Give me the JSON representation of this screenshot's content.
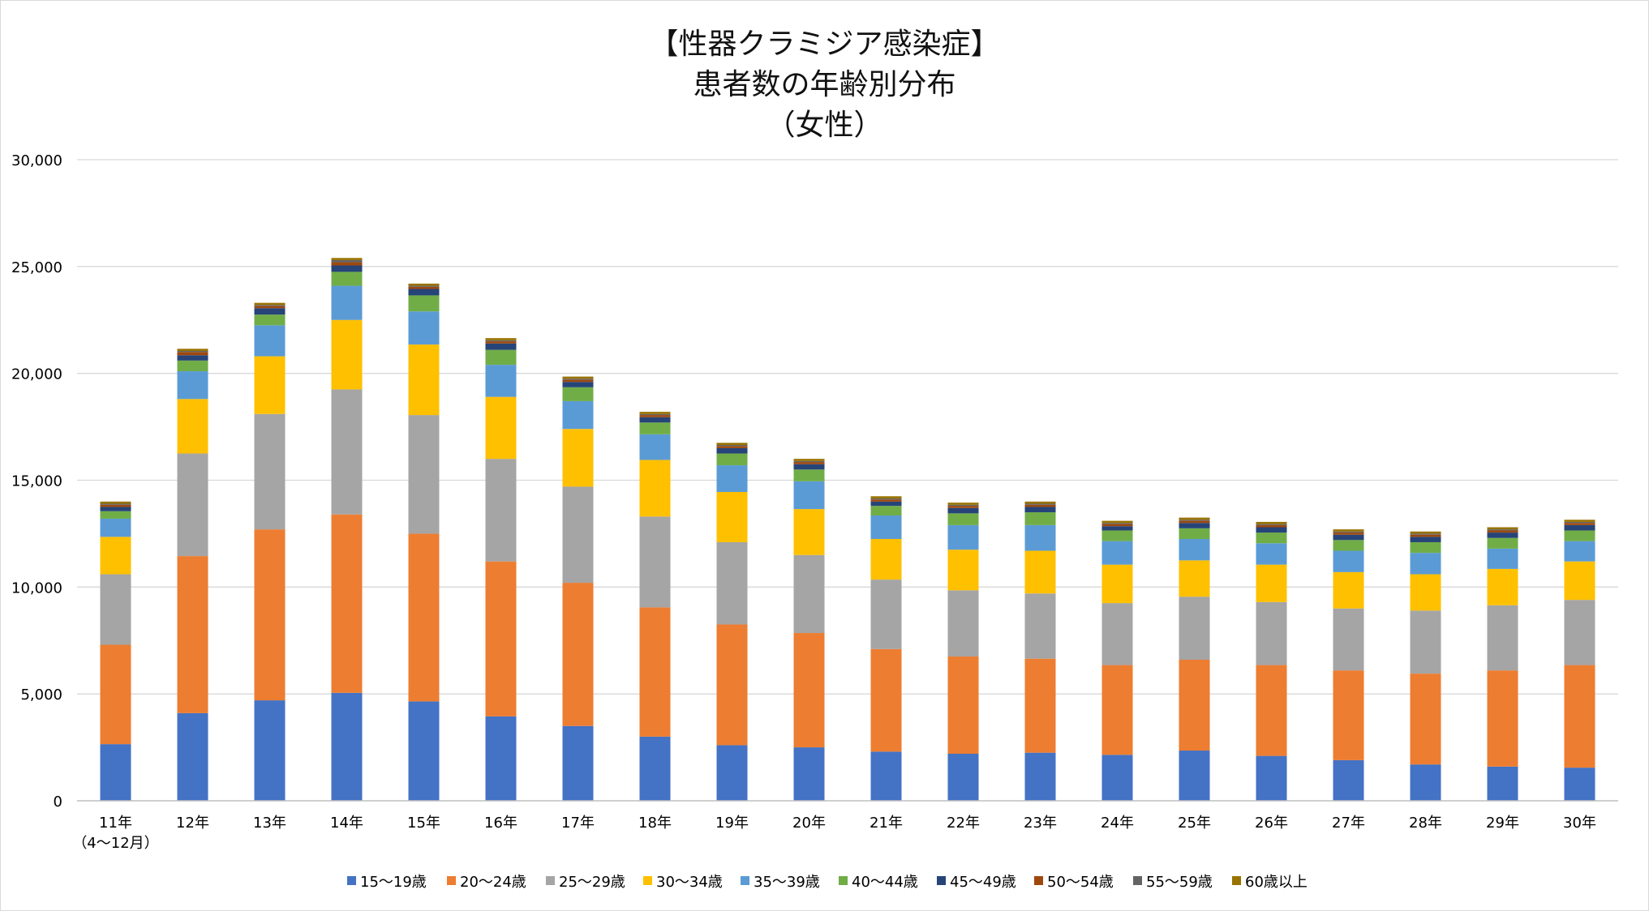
{
  "chart_data": {
    "type": "bar",
    "stacked": true,
    "title_lines": [
      "【性器クラミジア感染症】",
      "患者数の年齢別分布",
      "（女性）"
    ],
    "categories": [
      "11年",
      "12年",
      "13年",
      "14年",
      "15年",
      "16年",
      "17年",
      "18年",
      "19年",
      "20年",
      "21年",
      "22年",
      "23年",
      "24年",
      "25年",
      "26年",
      "27年",
      "28年",
      "29年",
      "30年"
    ],
    "category_sublabels": [
      "（4～12月）",
      "",
      "",
      "",
      "",
      "",
      "",
      "",
      "",
      "",
      "",
      "",
      "",
      "",
      "",
      "",
      "",
      "",
      "",
      ""
    ],
    "ylim": [
      0,
      30000
    ],
    "yticks": [
      "0",
      "5,000",
      "10,000",
      "15,000",
      "20,000",
      "25,000",
      "30,000"
    ],
    "ytick_values": [
      0,
      5000,
      10000,
      15000,
      20000,
      25000,
      30000
    ],
    "grid": true,
    "legend_position": "bottom",
    "series": [
      {
        "name": "15～19歳",
        "color": "#4472c4",
        "values": [
          2650,
          4100,
          4700,
          5050,
          4650,
          3950,
          3500,
          3000,
          2600,
          2500,
          2300,
          2200,
          2250,
          2150,
          2350,
          2100,
          1900,
          1700,
          1600,
          1550
        ]
      },
      {
        "name": "20～24歳",
        "color": "#ed7d31",
        "values": [
          4650,
          7350,
          8000,
          8350,
          7850,
          7250,
          6700,
          6050,
          5650,
          5350,
          4800,
          4550,
          4400,
          4200,
          4250,
          4250,
          4200,
          4250,
          4500,
          4800
        ]
      },
      {
        "name": "25～29歳",
        "color": "#a5a5a5",
        "values": [
          3300,
          4800,
          5400,
          5850,
          5550,
          4800,
          4500,
          4250,
          3850,
          3650,
          3250,
          3100,
          3050,
          2900,
          2950,
          2950,
          2900,
          2950,
          3050,
          3050
        ]
      },
      {
        "name": "30～34歳",
        "color": "#ffc000",
        "values": [
          1750,
          2550,
          2700,
          3250,
          3300,
          2900,
          2700,
          2650,
          2350,
          2150,
          1900,
          1900,
          2000,
          1800,
          1700,
          1750,
          1700,
          1700,
          1700,
          1800
        ]
      },
      {
        "name": "35～39歳",
        "color": "#5b9bd5",
        "values": [
          850,
          1300,
          1450,
          1600,
          1550,
          1500,
          1300,
          1200,
          1250,
          1300,
          1100,
          1150,
          1200,
          1100,
          1000,
          1000,
          1000,
          1000,
          950,
          950
        ]
      },
      {
        "name": "40～44歳",
        "color": "#70ad47",
        "values": [
          350,
          500,
          500,
          650,
          750,
          700,
          650,
          550,
          550,
          550,
          450,
          550,
          600,
          500,
          500,
          500,
          500,
          500,
          500,
          500
        ]
      },
      {
        "name": "45～49歳",
        "color": "#264478",
        "values": [
          200,
          250,
          300,
          300,
          300,
          300,
          250,
          250,
          250,
          250,
          200,
          250,
          250,
          200,
          250,
          250,
          250,
          250,
          250,
          250
        ]
      },
      {
        "name": "50～54歳",
        "color": "#9e480e",
        "values": [
          100,
          150,
          100,
          150,
          100,
          100,
          100,
          100,
          100,
          100,
          100,
          100,
          100,
          100,
          100,
          100,
          100,
          100,
          100,
          100
        ]
      },
      {
        "name": "55～59歳",
        "color": "#636363",
        "values": [
          50,
          50,
          50,
          100,
          50,
          50,
          50,
          50,
          50,
          50,
          50,
          50,
          50,
          50,
          50,
          50,
          50,
          50,
          50,
          50
        ]
      },
      {
        "name": "60歳以上",
        "color": "#997300",
        "values": [
          100,
          100,
          100,
          100,
          100,
          100,
          100,
          100,
          100,
          100,
          100,
          100,
          100,
          100,
          100,
          100,
          100,
          100,
          100,
          100
        ]
      }
    ]
  }
}
